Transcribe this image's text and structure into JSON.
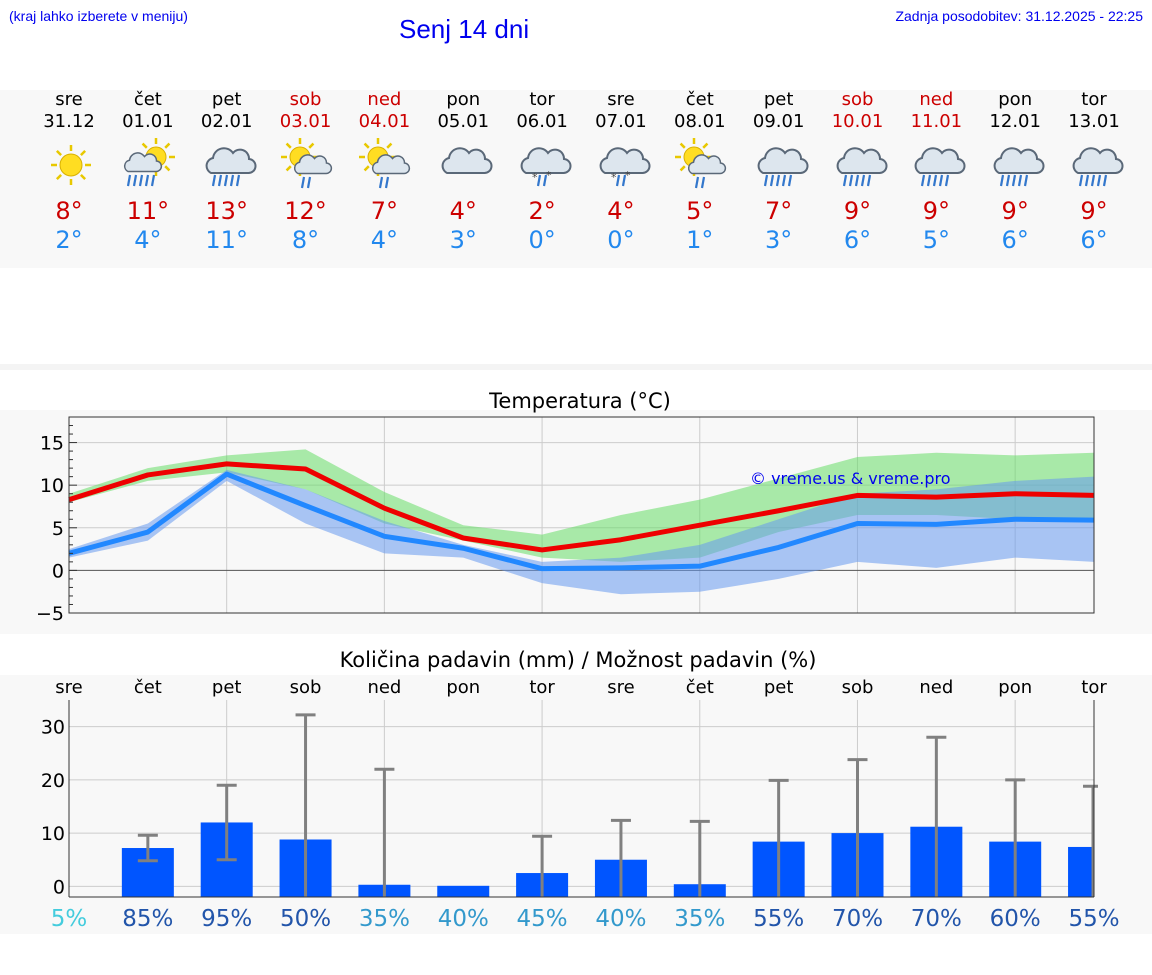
{
  "header": {
    "hint": "(kraj lahko izberete v meniju)",
    "title": "Senj 14 dni",
    "updated": "Zadnja posodobitev: 31.12.2025 - 22:25"
  },
  "colors": {
    "link": "#0000ee",
    "weekend": "#cc0000",
    "tmax": "#ee0000",
    "tmin": "#2288ff",
    "precip_bar": "#0055ff",
    "whisker": "#808080"
  },
  "days": [
    {
      "dow": "sre",
      "date": "31.12",
      "weekend": false,
      "icon": "sun-icon",
      "tmax": "8°",
      "tmin": "2°"
    },
    {
      "dow": "čet",
      "date": "01.01",
      "weekend": false,
      "icon": "sun-cloud-rain-icon",
      "tmax": "11°",
      "tmin": "4°"
    },
    {
      "dow": "pet",
      "date": "02.01",
      "weekend": false,
      "icon": "cloud-rain-icon",
      "tmax": "13°",
      "tmin": "11°"
    },
    {
      "dow": "sob",
      "date": "03.01",
      "weekend": true,
      "icon": "sun-cloud-light-rain-icon",
      "tmax": "12°",
      "tmin": "8°"
    },
    {
      "dow": "ned",
      "date": "04.01",
      "weekend": true,
      "icon": "sun-cloud-light-rain-icon",
      "tmax": "7°",
      "tmin": "4°"
    },
    {
      "dow": "pon",
      "date": "05.01",
      "weekend": false,
      "icon": "cloud-icon",
      "tmax": "4°",
      "tmin": "3°"
    },
    {
      "dow": "tor",
      "date": "06.01",
      "weekend": false,
      "icon": "cloud-sleet-icon",
      "tmax": "2°",
      "tmin": "0°"
    },
    {
      "dow": "sre",
      "date": "07.01",
      "weekend": false,
      "icon": "cloud-sleet-icon",
      "tmax": "4°",
      "tmin": "0°"
    },
    {
      "dow": "čet",
      "date": "08.01",
      "weekend": false,
      "icon": "sun-cloud-light-rain-icon",
      "tmax": "5°",
      "tmin": "1°"
    },
    {
      "dow": "pet",
      "date": "09.01",
      "weekend": false,
      "icon": "cloud-rain-icon",
      "tmax": "7°",
      "tmin": "3°"
    },
    {
      "dow": "sob",
      "date": "10.01",
      "weekend": true,
      "icon": "cloud-rain-icon",
      "tmax": "9°",
      "tmin": "6°"
    },
    {
      "dow": "ned",
      "date": "11.01",
      "weekend": true,
      "icon": "cloud-rain-icon",
      "tmax": "9°",
      "tmin": "5°"
    },
    {
      "dow": "pon",
      "date": "12.01",
      "weekend": false,
      "icon": "cloud-rain-icon",
      "tmax": "9°",
      "tmin": "6°"
    },
    {
      "dow": "tor",
      "date": "13.01",
      "weekend": false,
      "icon": "cloud-rain-icon",
      "tmax": "9°",
      "tmin": "6°"
    }
  ],
  "chart_data": [
    {
      "type": "line",
      "title": "Temperatura (°C)",
      "watermark": "© vreme.us & vreme.pro",
      "xlabel": "",
      "ylabel": "",
      "x": [
        0,
        1,
        2,
        3,
        4,
        5,
        6,
        7,
        8,
        9,
        10,
        11,
        12,
        13
      ],
      "xlim": [
        0,
        13
      ],
      "ylim": [
        -5,
        18
      ],
      "yticks": [
        -5,
        0,
        5,
        10,
        15
      ],
      "ytick_labels": [
        "−5",
        "0",
        "5",
        "10",
        "15"
      ],
      "grid": true,
      "series": [
        {
          "name": "Tmax",
          "color": "#ee0000",
          "values": [
            8.3,
            11.2,
            12.5,
            11.9,
            7.3,
            3.8,
            2.4,
            3.6,
            5.3,
            7.0,
            8.8,
            8.6,
            9.0,
            8.8
          ]
        },
        {
          "name": "Tmin",
          "color": "#2288ff",
          "values": [
            2.0,
            4.5,
            11.3,
            7.6,
            4.0,
            2.6,
            0.2,
            0.3,
            0.5,
            2.7,
            5.5,
            5.4,
            6.0,
            5.9
          ]
        }
      ],
      "bands": [
        {
          "name": "Tmax range",
          "color": "#66dd66",
          "low": [
            8.0,
            10.5,
            11.5,
            9.5,
            5.5,
            3.5,
            1.5,
            1.0,
            1.5,
            4.5,
            6.5,
            6.5,
            6.0,
            6.0
          ],
          "high": [
            9.0,
            12.0,
            13.5,
            14.2,
            9.2,
            5.3,
            4.2,
            6.5,
            8.3,
            10.8,
            13.3,
            13.8,
            13.5,
            13.8
          ]
        },
        {
          "name": "Tmin range",
          "color": "#6699ee",
          "low": [
            1.5,
            3.5,
            10.5,
            5.5,
            2.0,
            1.5,
            -1.5,
            -2.8,
            -2.5,
            -1.0,
            1.0,
            0.3,
            1.5,
            1.0
          ],
          "high": [
            2.5,
            5.5,
            11.8,
            9.5,
            5.8,
            3.0,
            1.0,
            1.5,
            3.0,
            6.0,
            9.0,
            9.5,
            10.5,
            11.0
          ]
        }
      ]
    },
    {
      "type": "bar",
      "title": "Količina padavin (mm) / Možnost padavin (%)",
      "xlabel": "",
      "ylabel": "",
      "categories": [
        "sre",
        "čet",
        "pet",
        "sob",
        "ned",
        "pon",
        "tor",
        "sre",
        "čet",
        "pet",
        "sob",
        "ned",
        "pon",
        "tor"
      ],
      "ylim": [
        -2,
        35
      ],
      "yticks": [
        0,
        10,
        20,
        30
      ],
      "ytick_labels": [
        "0",
        "10",
        "20",
        "30"
      ],
      "grid": true,
      "series": [
        {
          "name": "Količina padavin (mm)",
          "color": "#0055ff",
          "values": [
            0.0,
            7.2,
            12.0,
            8.8,
            0.3,
            0.1,
            2.5,
            5.0,
            0.4,
            8.4,
            10.0,
            11.2,
            8.4,
            7.4
          ]
        }
      ],
      "error_low": [
        0,
        4.8,
        5.0,
        0,
        0,
        0,
        0,
        0,
        0,
        0,
        0,
        0,
        0,
        0
      ],
      "error_high": [
        0,
        9.6,
        19.0,
        32.2,
        22.0,
        0.2,
        9.4,
        12.4,
        12.2,
        19.9,
        23.8,
        28.0,
        20.0,
        18.8
      ],
      "chance_labels": [
        "5%",
        "85%",
        "95%",
        "50%",
        "35%",
        "40%",
        "45%",
        "40%",
        "35%",
        "55%",
        "70%",
        "70%",
        "60%",
        "55%"
      ],
      "chance_colors": [
        "#44ccdd",
        "#2255aa",
        "#2255aa",
        "#2255aa",
        "#3399cc",
        "#3399cc",
        "#3399cc",
        "#3399cc",
        "#3399cc",
        "#2255aa",
        "#2255aa",
        "#2255aa",
        "#2255aa",
        "#2255aa"
      ]
    }
  ]
}
